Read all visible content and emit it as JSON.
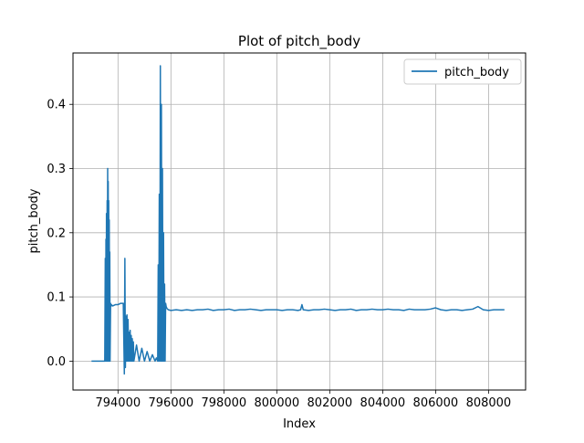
{
  "chart_data": {
    "type": "line",
    "title": "Plot of pitch_body",
    "xlabel": "Index",
    "ylabel": "pitch_body",
    "xlim": [
      792300,
      809400
    ],
    "ylim": [
      -0.045,
      0.48
    ],
    "grid": true,
    "legend_position": "top-right",
    "x_ticks": [
      794000,
      796000,
      798000,
      800000,
      802000,
      804000,
      806000,
      808000
    ],
    "x_tick_labels": [
      "794000",
      "796000",
      "798000",
      "800000",
      "802000",
      "804000",
      "806000",
      "808000"
    ],
    "y_ticks": [
      0.0,
      0.1,
      0.2,
      0.3,
      0.4
    ],
    "y_tick_labels": [
      "0.0",
      "0.1",
      "0.2",
      "0.3",
      "0.4"
    ],
    "series": [
      {
        "name": "pitch_body",
        "color": "#1f77b4",
        "x": [
          793000,
          793500,
          793520,
          793535,
          793545,
          793555,
          793565,
          793575,
          793590,
          793600,
          793610,
          793620,
          793630,
          793640,
          793650,
          793660,
          793670,
          793680,
          793690,
          793700,
          793720,
          793730,
          793750,
          793800,
          793900,
          794000,
          794100,
          794200,
          794240,
          794260,
          794280,
          794300,
          794320,
          794340,
          794360,
          794380,
          794400,
          794420,
          794440,
          794460,
          794480,
          794500,
          794520,
          794540,
          794560,
          794580,
          794600,
          794700,
          794800,
          794900,
          795000,
          795100,
          795200,
          795300,
          795400,
          795450,
          795500,
          795520,
          795540,
          795560,
          795580,
          795600,
          795620,
          795640,
          795660,
          795680,
          795700,
          795720,
          795740,
          795760,
          795780,
          795800,
          795820,
          795850,
          795900,
          796000,
          796200,
          796400,
          796600,
          796800,
          797000,
          797200,
          797400,
          797600,
          797800,
          798000,
          798200,
          798400,
          798600,
          798800,
          799000,
          799200,
          799400,
          799600,
          799800,
          800000,
          800200,
          800400,
          800600,
          800800,
          800900,
          800950,
          801000,
          801200,
          801400,
          801600,
          801800,
          802000,
          802200,
          802400,
          802600,
          802800,
          803000,
          803200,
          803400,
          803600,
          803800,
          804000,
          804200,
          804400,
          804600,
          804800,
          805000,
          805200,
          805400,
          805600,
          805800,
          806000,
          806200,
          806400,
          806600,
          806800,
          807000,
          807200,
          807400,
          807600,
          807800,
          808000,
          808200,
          808400,
          808600
        ],
        "y": [
          0.0,
          0.0,
          0.16,
          0.0,
          0.19,
          0.0,
          0.23,
          0.0,
          0.25,
          0.0,
          0.3,
          0.0,
          0.28,
          0.0,
          0.25,
          0.0,
          0.22,
          0.0,
          0.17,
          0.0,
          0.09,
          0.085,
          0.088,
          0.086,
          0.088,
          0.088,
          0.09,
          0.09,
          -0.02,
          0.16,
          -0.01,
          0.07,
          0.0,
          0.072,
          0.0,
          0.065,
          0.0,
          0.045,
          0.0,
          0.048,
          0.0,
          0.04,
          0.0,
          0.035,
          0.0,
          0.03,
          0.0,
          0.025,
          0.0,
          0.02,
          0.0,
          0.015,
          0.0,
          0.01,
          0.0,
          0.005,
          0.0,
          0.15,
          0.0,
          0.26,
          0.0,
          0.46,
          0.0,
          0.4,
          0.0,
          0.3,
          0.0,
          0.2,
          0.0,
          0.12,
          0.0,
          0.09,
          0.085,
          0.082,
          0.08,
          0.079,
          0.08,
          0.079,
          0.08,
          0.079,
          0.08,
          0.08,
          0.081,
          0.079,
          0.08,
          0.08,
          0.081,
          0.079,
          0.08,
          0.08,
          0.081,
          0.08,
          0.079,
          0.08,
          0.08,
          0.08,
          0.079,
          0.08,
          0.08,
          0.079,
          0.08,
          0.088,
          0.08,
          0.079,
          0.08,
          0.08,
          0.081,
          0.08,
          0.079,
          0.08,
          0.08,
          0.081,
          0.079,
          0.08,
          0.08,
          0.081,
          0.08,
          0.08,
          0.081,
          0.08,
          0.08,
          0.079,
          0.081,
          0.08,
          0.08,
          0.08,
          0.081,
          0.083,
          0.08,
          0.079,
          0.08,
          0.08,
          0.079,
          0.08,
          0.081,
          0.085,
          0.08,
          0.079,
          0.08,
          0.08,
          0.08
        ]
      }
    ]
  }
}
